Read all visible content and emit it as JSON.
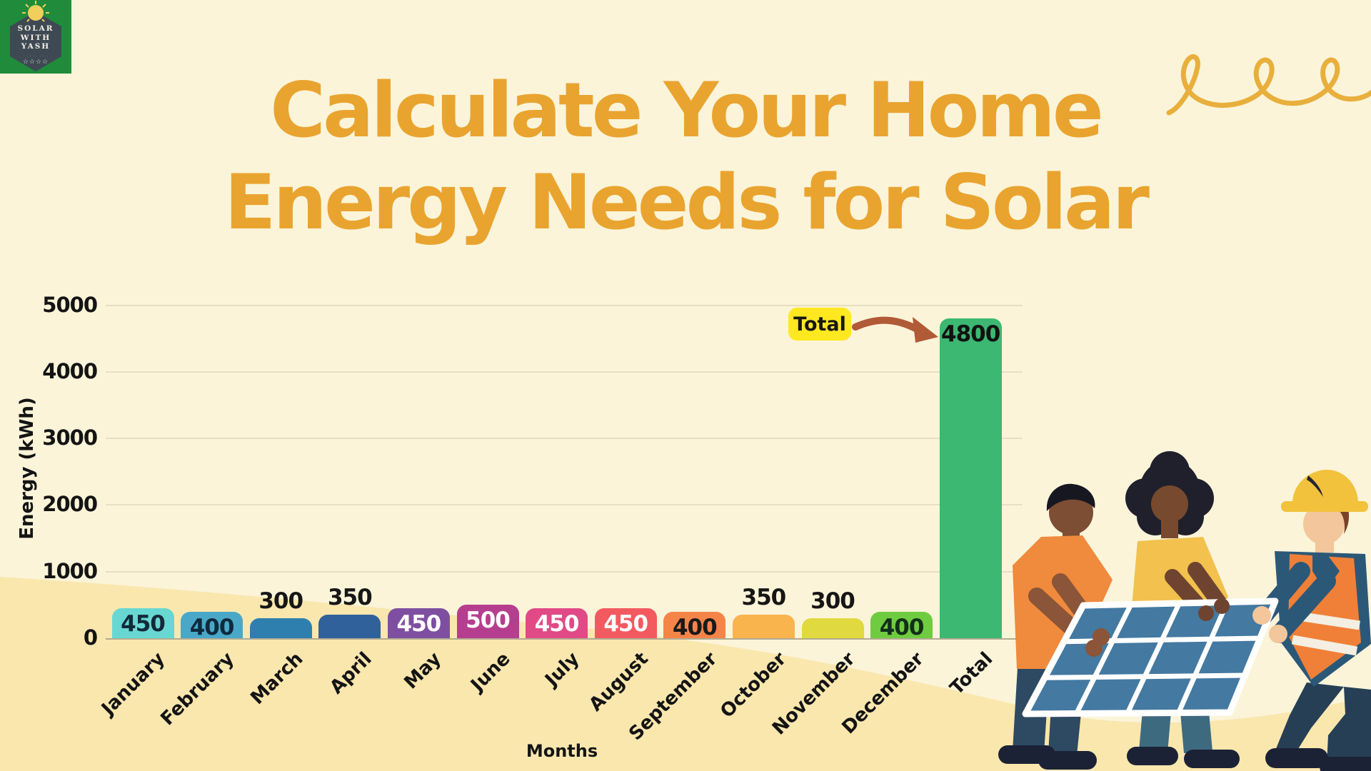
{
  "brand": {
    "line1": "SOLAR",
    "line2": "WITH",
    "line3": "YASH",
    "tagline": "· · · · · · · ·",
    "stars": "☆☆☆☆"
  },
  "title": {
    "line1": "Calculate Your Home",
    "line2": "Energy Needs for Solar",
    "color": "#E9A42F"
  },
  "chart_data": {
    "type": "bar",
    "title": "Calculate Your Home Energy Needs for Solar",
    "xlabel": "Months",
    "ylabel": "Energy (kWh)",
    "categories": [
      "January",
      "February",
      "March",
      "April",
      "May",
      "June",
      "July",
      "August",
      "September",
      "October",
      "November",
      "December",
      "Total"
    ],
    "values": [
      450,
      400,
      300,
      350,
      450,
      500,
      450,
      450,
      400,
      350,
      300,
      400,
      4800
    ],
    "bar_colors": [
      "#68D7D2",
      "#49A8C8",
      "#2F7FAE",
      "#31619B",
      "#7E4FA0",
      "#B63E8E",
      "#E14A86",
      "#F25A60",
      "#F58449",
      "#F9B44E",
      "#E0D93F",
      "#6FCB3F",
      "#3CB873"
    ],
    "label_placement": [
      "inside",
      "inside",
      "above",
      "above",
      "inside",
      "inside",
      "inside",
      "inside",
      "inside",
      "above",
      "above",
      "inside",
      "inside"
    ],
    "label_colors": [
      "#13293a",
      "#0f2a3d",
      "#161616",
      "#161616",
      "#FFFFFF",
      "#FFFFFF",
      "#FFFFFF",
      "#FFFFFF",
      "#1a1a1a",
      "#161616",
      "#161616",
      "#113018",
      "#121212"
    ],
    "ylim": [
      0,
      5000
    ],
    "yticks": [
      0,
      1000,
      2000,
      3000,
      4000,
      5000
    ],
    "grid": true,
    "legend": false,
    "annotation": {
      "label": "Total",
      "target_category": "Total",
      "target_value": 4800
    }
  },
  "annotation": {
    "chip_label": "Total",
    "chip_bg": "#FFE81F",
    "arrow_color": "#B15A36"
  },
  "colors": {
    "background_top": "#FBF4D9",
    "background_wave": "#FAE7AE",
    "gridline": "#E7DFC2",
    "axis": "#B2AB93",
    "squiggle": "#E8AF3C"
  },
  "illustration": {
    "alt": "Three people carrying a solar panel"
  }
}
